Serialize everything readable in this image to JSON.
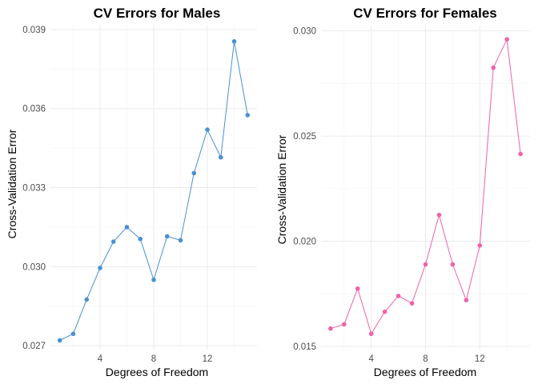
{
  "chart_data": [
    {
      "type": "line",
      "title": "CV Errors for Males",
      "xlabel": "Degrees of Freedom",
      "ylabel": "Cross-Validation Error",
      "x": [
        1,
        2,
        3,
        4,
        5,
        6,
        7,
        8,
        9,
        10,
        11,
        12,
        13,
        14,
        15
      ],
      "series": [
        {
          "values": [
            0.0272,
            0.02745,
            0.02875,
            0.02995,
            0.03095,
            0.0315,
            0.03105,
            0.0295,
            0.03115,
            0.031,
            0.03355,
            0.0352,
            0.03415,
            0.03855,
            0.03575
          ]
        }
      ],
      "xticks": [
        4,
        8,
        12
      ],
      "tick_labels_x": [
        "4",
        "8",
        "12"
      ],
      "yticks": [
        0.027,
        0.03,
        0.033,
        0.036,
        0.039
      ],
      "tick_labels_y": [
        "0.027",
        "0.030",
        "0.033",
        "0.036",
        "0.039"
      ],
      "xlim": [
        0.3,
        15.7
      ],
      "ylim": [
        0.02685,
        0.03915
      ],
      "grid": true,
      "color": "#4A90D2"
    },
    {
      "type": "line",
      "title": "CV Errors for Females",
      "xlabel": "Degrees of Freedom",
      "ylabel": "Cross-Validation Error",
      "x": [
        1,
        2,
        3,
        4,
        5,
        6,
        7,
        8,
        9,
        10,
        11,
        12,
        13,
        14,
        15
      ],
      "series": [
        {
          "values": [
            0.01585,
            0.01605,
            0.01775,
            0.0156,
            0.01665,
            0.0174,
            0.01705,
            0.0189,
            0.02125,
            0.0189,
            0.0172,
            0.0198,
            0.02825,
            0.0296,
            0.02415
          ]
        }
      ],
      "xticks": [
        4,
        8,
        12
      ],
      "tick_labels_x": [
        "4",
        "8",
        "12"
      ],
      "yticks": [
        0.015,
        0.02,
        0.025,
        0.03
      ],
      "tick_labels_y": [
        "0.015",
        "0.020",
        "0.025",
        "0.030"
      ],
      "xlim": [
        0.3,
        15.7
      ],
      "ylim": [
        0.01485,
        0.03025
      ],
      "grid": true,
      "color": "#F062A8"
    }
  ]
}
